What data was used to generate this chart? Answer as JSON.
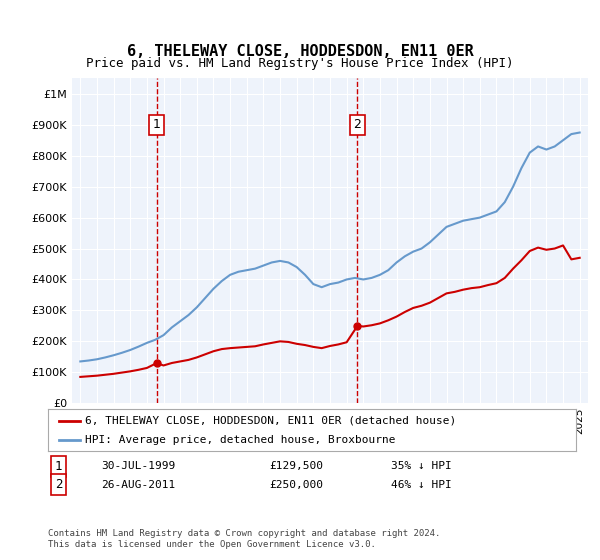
{
  "title": "6, THELEWAY CLOSE, HODDESDON, EN11 0ER",
  "subtitle": "Price paid vs. HM Land Registry's House Price Index (HPI)",
  "ylabel_top": "£1M",
  "background_color": "#eef3fb",
  "plot_bg": "#eef3fb",
  "sale1_date": "30-JUL-1999",
  "sale1_price": 129500,
  "sale1_label": "1",
  "sale1_year": 1999.58,
  "sale2_date": "26-AUG-2011",
  "sale2_price": 250000,
  "sale2_label": "2",
  "sale2_year": 2011.65,
  "legend_line1": "6, THELEWAY CLOSE, HODDESDON, EN11 0ER (detached house)",
  "legend_line2": "HPI: Average price, detached house, Broxbourne",
  "note1": "1    30-JUL-1999          £129,500          35% ↓ HPI",
  "note2": "2    26-AUG-2011          £250,000          46% ↓ HPI",
  "footer": "Contains HM Land Registry data © Crown copyright and database right 2024.\nThis data is licensed under the Open Government Licence v3.0.",
  "red_line_color": "#cc0000",
  "blue_line_color": "#6699cc",
  "hpi_x": [
    1995,
    1995.5,
    1996,
    1996.5,
    1997,
    1997.5,
    1998,
    1998.5,
    1999,
    1999.5,
    2000,
    2000.5,
    2001,
    2001.5,
    2002,
    2002.5,
    2003,
    2003.5,
    2004,
    2004.5,
    2005,
    2005.5,
    2006,
    2006.5,
    2007,
    2007.5,
    2008,
    2008.5,
    2009,
    2009.5,
    2010,
    2010.5,
    2011,
    2011.5,
    2012,
    2012.5,
    2013,
    2013.5,
    2014,
    2014.5,
    2015,
    2015.5,
    2016,
    2016.5,
    2017,
    2017.5,
    2018,
    2018.5,
    2019,
    2019.5,
    2020,
    2020.5,
    2021,
    2021.5,
    2022,
    2022.5,
    2023,
    2023.5,
    2024,
    2024.5,
    2025
  ],
  "hpi_y": [
    135000,
    138000,
    142000,
    148000,
    155000,
    163000,
    172000,
    183000,
    195000,
    205000,
    220000,
    245000,
    265000,
    285000,
    310000,
    340000,
    370000,
    395000,
    415000,
    425000,
    430000,
    435000,
    445000,
    455000,
    460000,
    455000,
    440000,
    415000,
    385000,
    375000,
    385000,
    390000,
    400000,
    405000,
    400000,
    405000,
    415000,
    430000,
    455000,
    475000,
    490000,
    500000,
    520000,
    545000,
    570000,
    580000,
    590000,
    595000,
    600000,
    610000,
    620000,
    650000,
    700000,
    760000,
    810000,
    830000,
    820000,
    830000,
    850000,
    870000,
    875000
  ],
  "red_x": [
    1995,
    1995.5,
    1996,
    1996.5,
    1997,
    1997.5,
    1998,
    1998.5,
    1999,
    1999.58,
    2000,
    2000.5,
    2001,
    2001.5,
    2002,
    2002.5,
    2003,
    2003.5,
    2004,
    2004.5,
    2005,
    2005.5,
    2006,
    2006.5,
    2007,
    2007.5,
    2008,
    2008.5,
    2009,
    2009.5,
    2010,
    2010.5,
    2011,
    2011.65,
    2012,
    2012.5,
    2013,
    2013.5,
    2014,
    2014.5,
    2015,
    2015.5,
    2016,
    2016.5,
    2017,
    2017.5,
    2018,
    2018.5,
    2019,
    2019.5,
    2020,
    2020.5,
    2021,
    2021.5,
    2022,
    2022.5,
    2023,
    2023.5,
    2024,
    2024.5,
    2025
  ],
  "red_y": [
    85000,
    87000,
    89000,
    92000,
    95000,
    99000,
    103000,
    108000,
    114000,
    129500,
    122000,
    130000,
    135000,
    140000,
    148000,
    158000,
    168000,
    175000,
    178000,
    180000,
    182000,
    184000,
    190000,
    195000,
    200000,
    198000,
    192000,
    188000,
    182000,
    178000,
    185000,
    190000,
    197000,
    250000,
    248000,
    252000,
    258000,
    268000,
    280000,
    295000,
    308000,
    315000,
    325000,
    340000,
    355000,
    360000,
    367000,
    372000,
    375000,
    382000,
    388000,
    405000,
    435000,
    462000,
    492000,
    503000,
    496000,
    500000,
    510000,
    465000,
    470000
  ]
}
